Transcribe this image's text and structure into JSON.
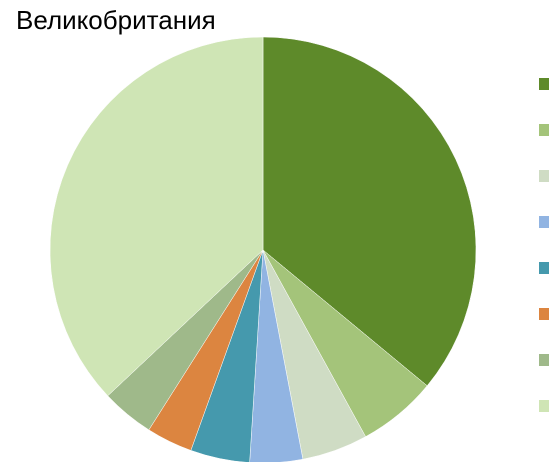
{
  "chart_data": {
    "type": "pie",
    "annotation": "Великобритания",
    "categories": [
      null,
      null,
      null,
      null,
      null,
      null,
      null,
      null
    ],
    "values": [
      36,
      6,
      5,
      4,
      4.5,
      3.5,
      4,
      37
    ],
    "colors": [
      "#5e8a2a",
      "#a4c47a",
      "#cfdcc4",
      "#91b4e2",
      "#4599ad",
      "#dc8540",
      "#9fb98a",
      "#cfe5b5"
    ]
  }
}
